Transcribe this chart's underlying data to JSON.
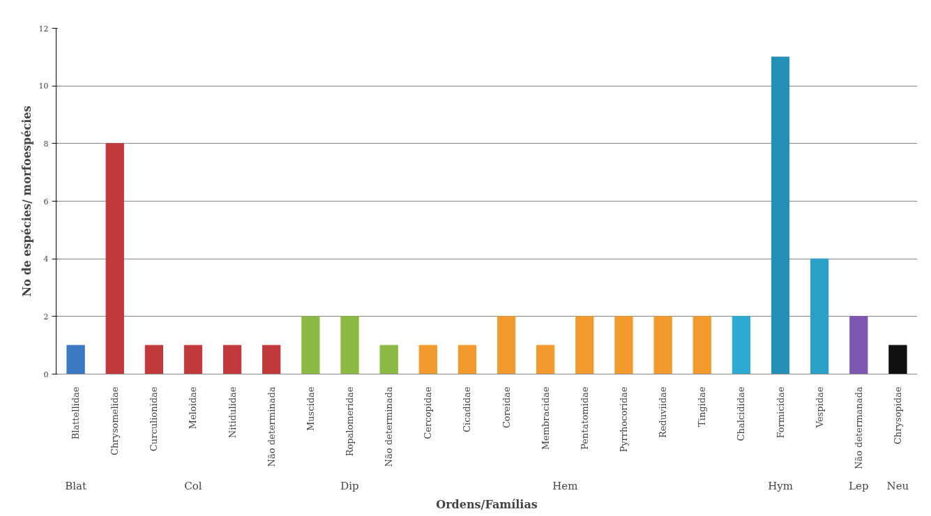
{
  "chart_data": {
    "type": "bar",
    "xlabel": "Ordens/Famílias",
    "ylabel": "No de espécies/ morfoespécies",
    "categories": [
      "Blattellidae",
      "Chrysomelidae",
      "Curculionidae",
      "Meloidae",
      "Nitidulidae",
      "Não determinada",
      "Muscidae",
      "Ropalomeridae",
      "Não determinada",
      "Cercopidae",
      "Cicadidae",
      "Coreidae",
      "Membracidae",
      "Pentatomidae",
      "Pyrrhocoridae",
      "Reduviidae",
      "Tingidae",
      "Chalcididae",
      "Formicidae",
      "Vespidae",
      "Não determanada",
      "Chrysopidae"
    ],
    "values": [
      1,
      8,
      1,
      1,
      1,
      1,
      2,
      2,
      1,
      1,
      1,
      2,
      1,
      2,
      2,
      2,
      2,
      2,
      11,
      4,
      2,
      1
    ],
    "colors": [
      "#3a78c0",
      "#c0393b",
      "#c0393b",
      "#c0393b",
      "#c0393b",
      "#c0393b",
      "#8cb844",
      "#8cb844",
      "#8cb844",
      "#f29a2e",
      "#f29a2e",
      "#f29a2e",
      "#f29a2e",
      "#f29a2e",
      "#f29a2e",
      "#f29a2e",
      "#f29a2e",
      "#2eaad2",
      "#2390b8",
      "#2ba0c8",
      "#7e58b0",
      "#111111"
    ],
    "annotations": [
      "Blat",
      "Col",
      "Dip",
      "Hem",
      "Hym",
      "Lep",
      "Neu"
    ],
    "ylim": [
      0,
      12
    ],
    "yticks": [
      0,
      2,
      4,
      6,
      8,
      10,
      12
    ],
    "grid": "y"
  }
}
